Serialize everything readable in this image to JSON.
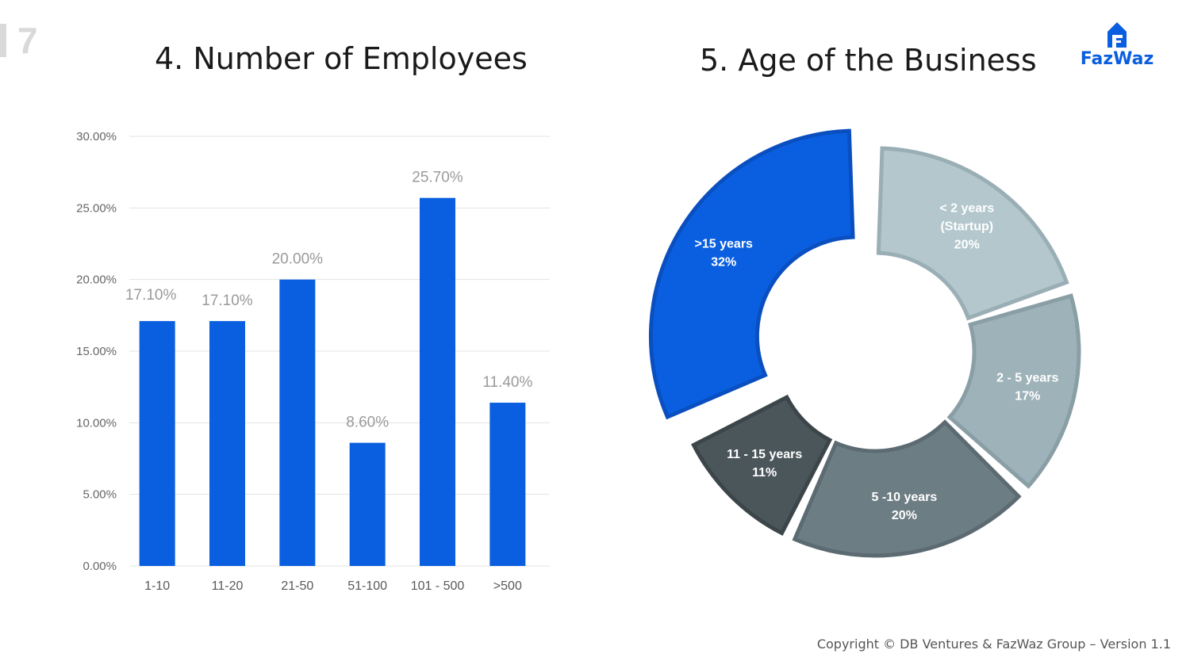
{
  "page": {
    "number": "7"
  },
  "logo": {
    "text": "FazWaz",
    "icon": "building-icon"
  },
  "left_title": "4. Number of Employees",
  "right_title": "5. Age of the Business",
  "copyright": "Copyright © DB Ventures & FazWaz Group – Version 1.1",
  "colors": {
    "bar": "#0a5fe0",
    "accent": "#0a5fe0",
    "grid": "#e3e3e3"
  },
  "chart_data": [
    {
      "type": "bar",
      "title": "4. Number of Employees",
      "categories": [
        "1-10",
        "11-20",
        "21-50",
        "51-100",
        "101 - 500",
        ">500"
      ],
      "values": [
        17.1,
        17.1,
        20.0,
        8.6,
        25.7,
        11.4
      ],
      "data_labels": [
        "17.10%",
        "17.10%",
        "20.00%",
        "8.60%",
        "25.70%",
        "11.40%"
      ],
      "yticks": [
        "0.00%",
        "5.00%",
        "10.00%",
        "15.00%",
        "20.00%",
        "25.00%",
        "30.00%"
      ],
      "ylim": [
        0,
        30
      ],
      "grid": true,
      "color": "#0a5fe0"
    },
    {
      "type": "pie",
      "style": "donut",
      "title": "5. Age of the Business",
      "slices": [
        {
          "label_lines": [
            "< 2 years",
            "(Startup)",
            "20%"
          ],
          "value": 20,
          "color": "#b3c7cd",
          "stroke": "#9aaeb5"
        },
        {
          "label_lines": [
            "2 - 5 years",
            "17%"
          ],
          "value": 17,
          "color": "#9eb2b9",
          "stroke": "#8a9ea5"
        },
        {
          "label_lines": [
            "5 -10 years",
            "20%"
          ],
          "value": 20,
          "color": "#6d7d84",
          "stroke": "#5c6b72"
        },
        {
          "label_lines": [
            "11 - 15 years",
            "11%"
          ],
          "value": 11,
          "color": "#4b565b",
          "stroke": "#3c464a"
        },
        {
          "label_lines": [
            ">15 years",
            "32%"
          ],
          "value": 32,
          "color": "#0a5fe0",
          "stroke": "#0a4fc0",
          "exploded": true
        }
      ]
    }
  ]
}
